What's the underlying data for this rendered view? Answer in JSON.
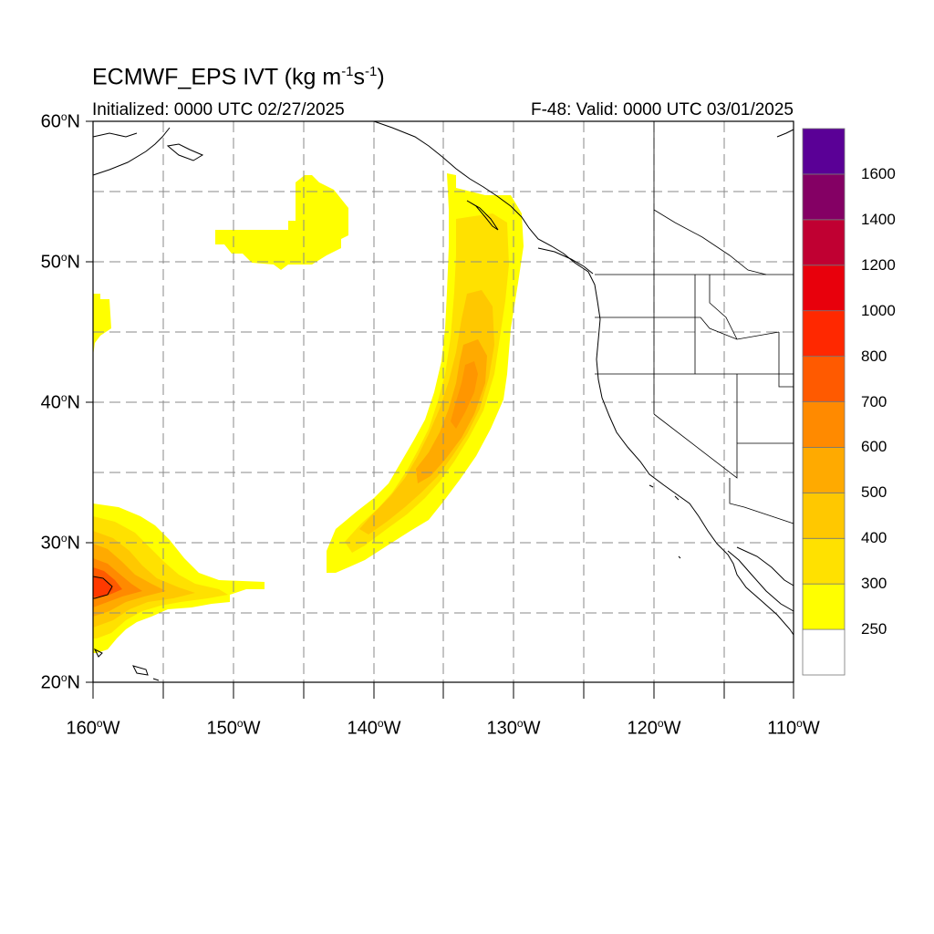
{
  "title": {
    "main": "ECMWF_EPS IVT (kg m",
    "exp1": "-1",
    "mid": "s",
    "exp2": "-1",
    "end": ")"
  },
  "subtitle": {
    "initialized": "Initialized: 0000 UTC 02/27/2025",
    "valid": "F-48: Valid: 0000 UTC 03/01/2025"
  },
  "lat_labels": [
    {
      "num": "60",
      "hem": "N"
    },
    {
      "num": "50",
      "hem": "N"
    },
    {
      "num": "40",
      "hem": "N"
    },
    {
      "num": "30",
      "hem": "N"
    },
    {
      "num": "20",
      "hem": "N"
    }
  ],
  "lon_labels": [
    {
      "num": "160",
      "hem": "W"
    },
    {
      "num": "150",
      "hem": "W"
    },
    {
      "num": "140",
      "hem": "W"
    },
    {
      "num": "130",
      "hem": "W"
    },
    {
      "num": "120",
      "hem": "W"
    },
    {
      "num": "110",
      "hem": "W"
    }
  ],
  "colorbar": {
    "labels": [
      "250",
      "300",
      "400",
      "500",
      "600",
      "700",
      "800",
      "1000",
      "1200",
      "1400",
      "1600"
    ],
    "colors": [
      "#ffffff",
      "#ffff00",
      "#ffe100",
      "#ffc800",
      "#ffaa00",
      "#ff8a00",
      "#ff5a00",
      "#ff2800",
      "#e8000c",
      "#c00032",
      "#840064",
      "#5a0096"
    ]
  },
  "map": {
    "projection": "cylindrical equidistant",
    "lat_range": [
      20,
      60
    ],
    "lon_range": [
      -160,
      -110
    ],
    "grid": "dashed every 5 degrees",
    "features": [
      "coastlines",
      "US state borders",
      "Mexico-US border"
    ],
    "ivt_regions": [
      "Atmospheric river from about 27N 142W curving north-east to about 55N 130W, peak 500-600 near 36N 134W",
      "Hook-shaped weak IVT patch near 51-56N 143-150W",
      "High IVT plume near 26-29N 150-160W with a closed contour near 27N 160W",
      "Small patch near 44-47N 160W"
    ]
  }
}
